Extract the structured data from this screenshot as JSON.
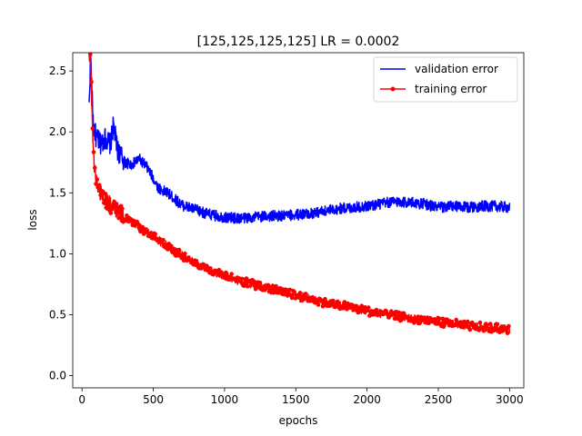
{
  "chart_data": {
    "type": "line",
    "title": "[125,125,125,125] LR = 0.0002",
    "xlabel": "epochs",
    "ylabel": "loss",
    "xlim": [
      -65,
      3100
    ],
    "ylim": [
      -0.1,
      2.65
    ],
    "x_ticks": [
      {
        "value": 0,
        "label": "0"
      },
      {
        "value": 500,
        "label": "500"
      },
      {
        "value": 1000,
        "label": "1000"
      },
      {
        "value": 1500,
        "label": "1500"
      },
      {
        "value": 2000,
        "label": "2000"
      },
      {
        "value": 2500,
        "label": "2500"
      },
      {
        "value": 3000,
        "label": "3000"
      }
    ],
    "y_ticks": [
      {
        "value": 0.0,
        "label": "0.0"
      },
      {
        "value": 0.5,
        "label": "0.5"
      },
      {
        "value": 1.0,
        "label": "1.0"
      },
      {
        "value": 1.5,
        "label": "1.5"
      },
      {
        "value": 2.0,
        "label": "2.0"
      },
      {
        "value": 2.5,
        "label": "2.5"
      }
    ],
    "grid": false,
    "legend_position": "top-right",
    "series": [
      {
        "name": "validation error",
        "color": "#0000ff",
        "marker": "none",
        "x": [
          50,
          60,
          70,
          80,
          100,
          130,
          160,
          200,
          220,
          250,
          300,
          350,
          400,
          450,
          500,
          530,
          560,
          600,
          650,
          700,
          800,
          900,
          1000,
          1100,
          1200,
          1300,
          1400,
          1500,
          1600,
          1700,
          1800,
          1900,
          2000,
          2100,
          2200,
          2300,
          2400,
          2500,
          2600,
          2700,
          2800,
          2900,
          3000
        ],
        "y": [
          2.2,
          2.65,
          2.3,
          2.05,
          1.95,
          1.9,
          1.95,
          1.9,
          2.05,
          1.85,
          1.75,
          1.73,
          1.78,
          1.72,
          1.62,
          1.55,
          1.52,
          1.5,
          1.45,
          1.4,
          1.36,
          1.32,
          1.3,
          1.29,
          1.3,
          1.31,
          1.31,
          1.32,
          1.33,
          1.35,
          1.37,
          1.38,
          1.39,
          1.41,
          1.43,
          1.42,
          1.41,
          1.38,
          1.39,
          1.38,
          1.39,
          1.39,
          1.38
        ]
      },
      {
        "name": "training error",
        "color": "#ff0000",
        "marker": "circle",
        "x": [
          50,
          60,
          70,
          80,
          100,
          130,
          160,
          200,
          250,
          300,
          350,
          400,
          450,
          500,
          550,
          600,
          650,
          700,
          750,
          800,
          900,
          1000,
          1100,
          1200,
          1300,
          1400,
          1500,
          1600,
          1700,
          1800,
          1900,
          2000,
          2100,
          2200,
          2300,
          2400,
          2500,
          2600,
          2700,
          2800,
          2900,
          3000
        ],
        "y": [
          2.65,
          2.6,
          2.2,
          1.8,
          1.6,
          1.5,
          1.45,
          1.4,
          1.35,
          1.3,
          1.26,
          1.22,
          1.18,
          1.14,
          1.1,
          1.06,
          1.02,
          0.99,
          0.95,
          0.92,
          0.86,
          0.82,
          0.78,
          0.75,
          0.72,
          0.69,
          0.66,
          0.63,
          0.6,
          0.58,
          0.56,
          0.53,
          0.51,
          0.49,
          0.47,
          0.46,
          0.44,
          0.43,
          0.41,
          0.4,
          0.39,
          0.38
        ]
      }
    ]
  }
}
